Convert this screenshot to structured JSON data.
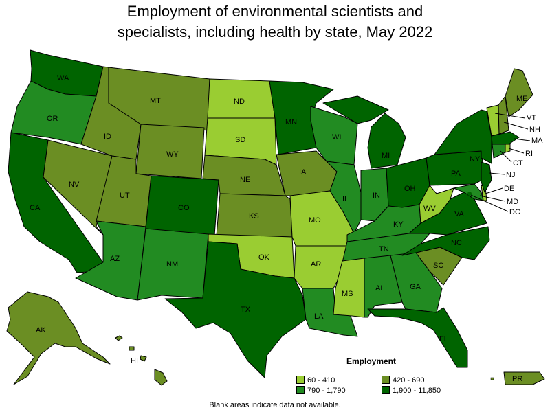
{
  "title_line1": "Employment of environmental scientists and",
  "title_line2": "specialists, including health by state, May 2022",
  "legend": {
    "title": "Employment",
    "items": [
      {
        "label": "60 - 410",
        "color": "#9acd32"
      },
      {
        "label": "420 - 690",
        "color": "#6b8e23"
      },
      {
        "label": "790 - 1,790",
        "color": "#228b22"
      },
      {
        "label": "1,900 - 11,850",
        "color": "#006400"
      }
    ]
  },
  "footnote": "Blank areas indicate data not available.",
  "colors": {
    "c1": "#9acd32",
    "c2": "#6b8e23",
    "c3": "#228b22",
    "c4": "#006400"
  },
  "states": [
    {
      "code": "WA",
      "cls": 4
    },
    {
      "code": "OR",
      "cls": 3
    },
    {
      "code": "CA",
      "cls": 4
    },
    {
      "code": "ID",
      "cls": 2
    },
    {
      "code": "NV",
      "cls": 2
    },
    {
      "code": "MT",
      "cls": 2
    },
    {
      "code": "WY",
      "cls": 2
    },
    {
      "code": "UT",
      "cls": 2
    },
    {
      "code": "AZ",
      "cls": 3
    },
    {
      "code": "CO",
      "cls": 4
    },
    {
      "code": "NM",
      "cls": 3
    },
    {
      "code": "ND",
      "cls": 1
    },
    {
      "code": "SD",
      "cls": 1
    },
    {
      "code": "NE",
      "cls": 2
    },
    {
      "code": "KS",
      "cls": 2
    },
    {
      "code": "OK",
      "cls": 1
    },
    {
      "code": "TX",
      "cls": 4
    },
    {
      "code": "MN",
      "cls": 4
    },
    {
      "code": "IA",
      "cls": 2
    },
    {
      "code": "MO",
      "cls": 1
    },
    {
      "code": "AR",
      "cls": 1
    },
    {
      "code": "LA",
      "cls": 3
    },
    {
      "code": "WI",
      "cls": 3
    },
    {
      "code": "IL",
      "cls": 3
    },
    {
      "code": "MI",
      "cls": 4
    },
    {
      "code": "IN",
      "cls": 3
    },
    {
      "code": "OH",
      "cls": 4
    },
    {
      "code": "KY",
      "cls": 3
    },
    {
      "code": "TN",
      "cls": 3
    },
    {
      "code": "MS",
      "cls": 1
    },
    {
      "code": "AL",
      "cls": 3
    },
    {
      "code": "GA",
      "cls": 3
    },
    {
      "code": "FL",
      "cls": 4
    },
    {
      "code": "SC",
      "cls": 2
    },
    {
      "code": "NC",
      "cls": 4
    },
    {
      "code": "VA",
      "cls": 4
    },
    {
      "code": "WV",
      "cls": 1
    },
    {
      "code": "PA",
      "cls": 4
    },
    {
      "code": "NY",
      "cls": 4
    },
    {
      "code": "ME",
      "cls": 2
    },
    {
      "code": "VT",
      "cls": 1
    },
    {
      "code": "NH",
      "cls": 2
    },
    {
      "code": "MA",
      "cls": 4
    },
    {
      "code": "RI",
      "cls": 1
    },
    {
      "code": "CT",
      "cls": 3
    },
    {
      "code": "NJ",
      "cls": 4
    },
    {
      "code": "DE",
      "cls": 1
    },
    {
      "code": "MD",
      "cls": 3
    },
    {
      "code": "DC",
      "cls": 4
    },
    {
      "code": "AK",
      "cls": 2
    },
    {
      "code": "HI",
      "cls": 2
    },
    {
      "code": "PR",
      "cls": 2
    }
  ]
}
